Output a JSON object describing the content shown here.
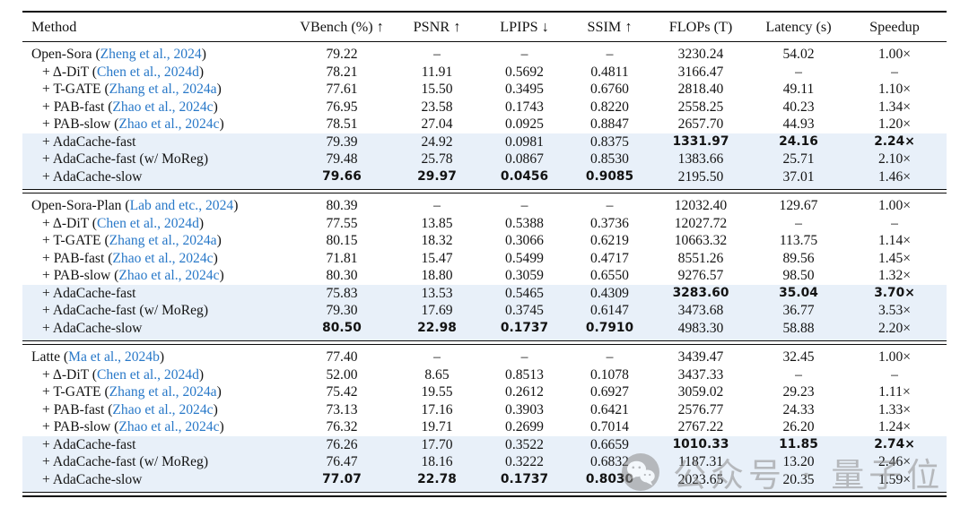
{
  "table": {
    "columns": [
      "Method",
      "VBench (%) ↑",
      "PSNR ↑",
      "LPIPS ↓",
      "SSIM ↑",
      "FLOPs (T)",
      "Latency (s)",
      "Speedup"
    ],
    "groups": [
      {
        "rows": [
          {
            "method": {
              "text": "Open-Sora (",
              "cite": "Zheng et al., 2024",
              "close": ")"
            },
            "indent": false,
            "highlight": false,
            "values": [
              "79.22",
              "–",
              "–",
              "–",
              "3230.24",
              "54.02",
              "1.00×"
            ],
            "bold": []
          },
          {
            "method": {
              "text": "+ Δ-DiT (",
              "cite": "Chen et al., 2024d",
              "close": ")"
            },
            "indent": true,
            "highlight": false,
            "values": [
              "78.21",
              "11.91",
              "0.5692",
              "0.4811",
              "3166.47",
              "–",
              "–"
            ],
            "bold": []
          },
          {
            "method": {
              "text": "+ T-GATE (",
              "cite": "Zhang et al., 2024a",
              "close": ")"
            },
            "indent": true,
            "highlight": false,
            "values": [
              "77.61",
              "15.50",
              "0.3495",
              "0.6760",
              "2818.40",
              "49.11",
              "1.10×"
            ],
            "bold": []
          },
          {
            "method": {
              "text": "+ PAB-fast (",
              "cite": "Zhao et al., 2024c",
              "close": ")"
            },
            "indent": true,
            "highlight": false,
            "values": [
              "76.95",
              "23.58",
              "0.1743",
              "0.8220",
              "2558.25",
              "40.23",
              "1.34×"
            ],
            "bold": []
          },
          {
            "method": {
              "text": "+ PAB-slow (",
              "cite": "Zhao et al., 2024c",
              "close": ")"
            },
            "indent": true,
            "highlight": false,
            "values": [
              "78.51",
              "27.04",
              "0.0925",
              "0.8847",
              "2657.70",
              "44.93",
              "1.20×"
            ],
            "bold": []
          },
          {
            "method": {
              "text": "+ AdaCache-fast",
              "cite": "",
              "close": ""
            },
            "indent": true,
            "highlight": true,
            "values": [
              "79.39",
              "24.92",
              "0.0981",
              "0.8375",
              "1331.97",
              "24.16",
              "2.24×"
            ],
            "bold": [
              4,
              5,
              6
            ]
          },
          {
            "method": {
              "text": "+ AdaCache-fast (w/ MoReg)",
              "cite": "",
              "close": ""
            },
            "indent": true,
            "highlight": true,
            "values": [
              "79.48",
              "25.78",
              "0.0867",
              "0.8530",
              "1383.66",
              "25.71",
              "2.10×"
            ],
            "bold": []
          },
          {
            "method": {
              "text": "+ AdaCache-slow",
              "cite": "",
              "close": ""
            },
            "indent": true,
            "highlight": true,
            "values": [
              "79.66",
              "29.97",
              "0.0456",
              "0.9085",
              "2195.50",
              "37.01",
              "1.46×"
            ],
            "bold": [
              0,
              1,
              2,
              3
            ]
          }
        ]
      },
      {
        "rows": [
          {
            "method": {
              "text": "Open-Sora-Plan (",
              "cite": "Lab and etc., 2024",
              "close": ")"
            },
            "indent": false,
            "highlight": false,
            "values": [
              "80.39",
              "–",
              "–",
              "–",
              "12032.40",
              "129.67",
              "1.00×"
            ],
            "bold": []
          },
          {
            "method": {
              "text": "+ Δ-DiT (",
              "cite": "Chen et al., 2024d",
              "close": ")"
            },
            "indent": true,
            "highlight": false,
            "values": [
              "77.55",
              "13.85",
              "0.5388",
              "0.3736",
              "12027.72",
              "–",
              "–"
            ],
            "bold": []
          },
          {
            "method": {
              "text": "+ T-GATE (",
              "cite": "Zhang et al., 2024a",
              "close": ")"
            },
            "indent": true,
            "highlight": false,
            "values": [
              "80.15",
              "18.32",
              "0.3066",
              "0.6219",
              "10663.32",
              "113.75",
              "1.14×"
            ],
            "bold": []
          },
          {
            "method": {
              "text": "+ PAB-fast (",
              "cite": "Zhao et al., 2024c",
              "close": ")"
            },
            "indent": true,
            "highlight": false,
            "values": [
              "71.81",
              "15.47",
              "0.5499",
              "0.4717",
              "8551.26",
              "89.56",
              "1.45×"
            ],
            "bold": []
          },
          {
            "method": {
              "text": "+ PAB-slow (",
              "cite": "Zhao et al., 2024c",
              "close": ")"
            },
            "indent": true,
            "highlight": false,
            "values": [
              "80.30",
              "18.80",
              "0.3059",
              "0.6550",
              "9276.57",
              "98.50",
              "1.32×"
            ],
            "bold": []
          },
          {
            "method": {
              "text": "+ AdaCache-fast",
              "cite": "",
              "close": ""
            },
            "indent": true,
            "highlight": true,
            "values": [
              "75.83",
              "13.53",
              "0.5465",
              "0.4309",
              "3283.60",
              "35.04",
              "3.70×"
            ],
            "bold": [
              4,
              5,
              6
            ]
          },
          {
            "method": {
              "text": "+ AdaCache-fast (w/ MoReg)",
              "cite": "",
              "close": ""
            },
            "indent": true,
            "highlight": true,
            "values": [
              "79.30",
              "17.69",
              "0.3745",
              "0.6147",
              "3473.68",
              "36.77",
              "3.53×"
            ],
            "bold": []
          },
          {
            "method": {
              "text": "+ AdaCache-slow",
              "cite": "",
              "close": ""
            },
            "indent": true,
            "highlight": true,
            "values": [
              "80.50",
              "22.98",
              "0.1737",
              "0.7910",
              "4983.30",
              "58.88",
              "2.20×"
            ],
            "bold": [
              0,
              1,
              2,
              3
            ]
          }
        ]
      },
      {
        "rows": [
          {
            "method": {
              "text": "Latte (",
              "cite": "Ma et al., 2024b",
              "close": ")"
            },
            "indent": false,
            "highlight": false,
            "values": [
              "77.40",
              "–",
              "–",
              "–",
              "3439.47",
              "32.45",
              "1.00×"
            ],
            "bold": []
          },
          {
            "method": {
              "text": "+ Δ-DiT (",
              "cite": "Chen et al., 2024d",
              "close": ")"
            },
            "indent": true,
            "highlight": false,
            "values": [
              "52.00",
              "8.65",
              "0.8513",
              "0.1078",
              "3437.33",
              "–",
              "–"
            ],
            "bold": []
          },
          {
            "method": {
              "text": "+ T-GATE (",
              "cite": "Zhang et al., 2024a",
              "close": ")"
            },
            "indent": true,
            "highlight": false,
            "values": [
              "75.42",
              "19.55",
              "0.2612",
              "0.6927",
              "3059.02",
              "29.23",
              "1.11×"
            ],
            "bold": []
          },
          {
            "method": {
              "text": "+ PAB-fast (",
              "cite": "Zhao et al., 2024c",
              "close": ")"
            },
            "indent": true,
            "highlight": false,
            "values": [
              "73.13",
              "17.16",
              "0.3903",
              "0.6421",
              "2576.77",
              "24.33",
              "1.33×"
            ],
            "bold": []
          },
          {
            "method": {
              "text": "+ PAB-slow (",
              "cite": "Zhao et al., 2024c",
              "close": ")"
            },
            "indent": true,
            "highlight": false,
            "values": [
              "76.32",
              "19.71",
              "0.2699",
              "0.7014",
              "2767.22",
              "26.20",
              "1.24×"
            ],
            "bold": []
          },
          {
            "method": {
              "text": "+ AdaCache-fast",
              "cite": "",
              "close": ""
            },
            "indent": true,
            "highlight": true,
            "values": [
              "76.26",
              "17.70",
              "0.3522",
              "0.6659",
              "1010.33",
              "11.85",
              "2.74×"
            ],
            "bold": [
              4,
              5,
              6
            ]
          },
          {
            "method": {
              "text": "+ AdaCache-fast (w/ MoReg)",
              "cite": "",
              "close": ""
            },
            "indent": true,
            "highlight": true,
            "values": [
              "76.47",
              "18.16",
              "0.3222",
              "0.6832",
              "1187.31",
              "13.20",
              "2.46×"
            ],
            "bold": []
          },
          {
            "method": {
              "text": "+ AdaCache-slow",
              "cite": "",
              "close": ""
            },
            "indent": true,
            "highlight": true,
            "values": [
              "77.07",
              "22.78",
              "0.1737",
              "0.8030",
              "2023.65",
              "20.35",
              "1.59×"
            ],
            "bold": [
              0,
              1,
              2,
              3
            ]
          }
        ]
      }
    ]
  },
  "watermark": {
    "text": "公众号 · 量子位"
  },
  "colors": {
    "citation_blue": "#2878c8",
    "highlight_row": "#e8f0f9",
    "rule_black": "#0c0c0c",
    "watermark_gray": "#8c8c8c"
  }
}
